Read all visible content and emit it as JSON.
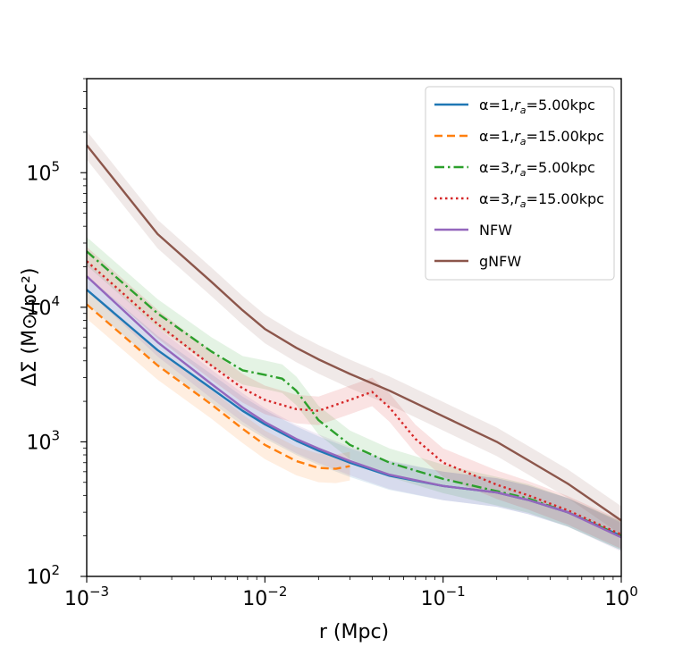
{
  "chart_data": {
    "type": "line",
    "title": "",
    "xlabel": "r (Mpc)",
    "ylabel": "ΔΣ (M⊙/pc²)",
    "xscale": "log",
    "yscale": "log",
    "xlim": [
      0.001,
      1.0
    ],
    "ylim": [
      100,
      500000
    ],
    "xticks": [
      {
        "base": "10",
        "exp": "−3"
      },
      {
        "base": "10",
        "exp": "−2"
      },
      {
        "base": "10",
        "exp": "−1"
      },
      {
        "base": "10",
        "exp": "0"
      }
    ],
    "yticks": [
      {
        "base": "10",
        "exp": "2"
      },
      {
        "base": "10",
        "exp": "3"
      },
      {
        "base": "10",
        "exp": "4"
      },
      {
        "base": "10",
        "exp": "5"
      }
    ],
    "grid": false,
    "legend_position": "top-right",
    "series": [
      {
        "name": "α=1,r_a=5.00kpc",
        "label_parts": {
          "pre": "α=1,",
          "r": "r",
          "sub": "a",
          "post": "=5.00kpc"
        },
        "color": "#1f77b4",
        "linestyle": "solid",
        "band": true,
        "x": [
          0.001,
          0.0025,
          0.005,
          0.0075,
          0.01,
          0.015,
          0.02,
          0.03,
          0.05,
          0.1,
          0.2,
          0.3,
          0.5,
          1.0
        ],
        "y": [
          13500,
          4800,
          2500,
          1700,
          1350,
          1020,
          860,
          700,
          560,
          470,
          420,
          370,
          300,
          200
        ]
      },
      {
        "name": "α=1,r_a=15.00kpc",
        "label_parts": {
          "pre": "α=1,",
          "r": "r",
          "sub": "a",
          "post": "=15.00kpc"
        },
        "color": "#ff7f0e",
        "linestyle": "dashed",
        "band": true,
        "x": [
          0.001,
          0.0025,
          0.005,
          0.0075,
          0.01,
          0.015,
          0.02,
          0.025,
          0.03
        ],
        "y": [
          10500,
          3700,
          1900,
          1250,
          950,
          720,
          640,
          630,
          660
        ]
      },
      {
        "name": "α=3,r_a=5.00kpc",
        "label_parts": {
          "pre": "α=3,",
          "r": "r",
          "sub": "a",
          "post": "=5.00kpc"
        },
        "color": "#2ca02c",
        "linestyle": "dashdot",
        "band": true,
        "x": [
          0.001,
          0.0025,
          0.005,
          0.0075,
          0.01,
          0.0125,
          0.015,
          0.02,
          0.03,
          0.05,
          0.1,
          0.2,
          0.3,
          0.5,
          1.0
        ],
        "y": [
          26000,
          9000,
          4700,
          3400,
          3150,
          2950,
          2400,
          1450,
          950,
          700,
          530,
          430,
          380,
          300,
          200
        ]
      },
      {
        "name": "α=3,r_a=15.00kpc",
        "label_parts": {
          "pre": "α=3,",
          "r": "r",
          "sub": "a",
          "post": "=15.00kpc"
        },
        "color": "#d62728",
        "linestyle": "dotted",
        "band": true,
        "x": [
          0.001,
          0.0025,
          0.005,
          0.0075,
          0.01,
          0.015,
          0.02,
          0.03,
          0.04,
          0.05,
          0.07,
          0.1,
          0.2,
          0.3,
          0.5,
          1.0
        ],
        "y": [
          22000,
          7500,
          3700,
          2500,
          2050,
          1750,
          1700,
          2050,
          2350,
          1800,
          1050,
          700,
          480,
          400,
          310,
          205
        ]
      },
      {
        "name": "NFW",
        "color": "#9467bd",
        "linestyle": "solid",
        "band": true,
        "x": [
          0.001,
          0.0025,
          0.005,
          0.0075,
          0.01,
          0.015,
          0.02,
          0.03,
          0.05,
          0.1,
          0.2,
          0.3,
          0.5,
          1.0
        ],
        "y": [
          17000,
          5500,
          2700,
          1800,
          1400,
          1050,
          890,
          720,
          570,
          470,
          420,
          370,
          300,
          195
        ]
      },
      {
        "name": "gNFW",
        "color": "#8c564b",
        "linestyle": "solid",
        "band": true,
        "x": [
          0.001,
          0.0025,
          0.005,
          0.0075,
          0.01,
          0.015,
          0.02,
          0.03,
          0.05,
          0.1,
          0.2,
          0.3,
          0.5,
          1.0
        ],
        "y": [
          160000,
          35000,
          15500,
          9500,
          6900,
          5000,
          4100,
          3200,
          2400,
          1550,
          1000,
          730,
          490,
          260
        ]
      }
    ]
  }
}
